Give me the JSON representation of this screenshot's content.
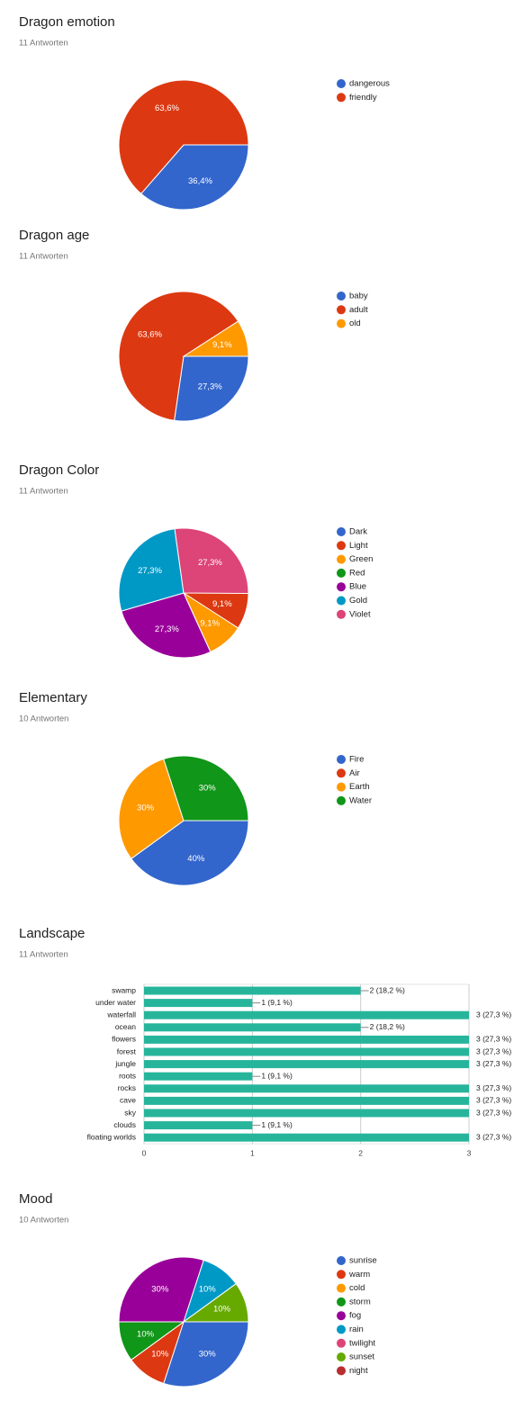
{
  "chart_data": [
    {
      "type": "pie",
      "title": "Dragon emotion",
      "subtitle": "11 Antworten",
      "categories": [
        "dangerous",
        "friendly"
      ],
      "values": [
        36.4,
        63.6
      ],
      "value_labels": [
        "36,4%",
        "63,6%"
      ],
      "colors": [
        "#3366cc",
        "#dc3912"
      ]
    },
    {
      "type": "pie",
      "title": "Dragon age",
      "subtitle": "11 Antworten",
      "categories": [
        "baby",
        "adult",
        "old"
      ],
      "values": [
        27.3,
        63.6,
        9.1
      ],
      "value_labels": [
        "27,3%",
        "63,6%",
        "9,1%"
      ],
      "colors": [
        "#3366cc",
        "#dc3912",
        "#ff9900"
      ]
    },
    {
      "type": "pie",
      "title": "Dragon Color",
      "subtitle": "11 Antworten",
      "categories": [
        "Dark",
        "Light",
        "Green",
        "Red",
        "Blue",
        "Gold",
        "Violet"
      ],
      "values": [
        0,
        9.1,
        9.1,
        0,
        27.3,
        27.3,
        27.3
      ],
      "value_labels": [
        null,
        "9,1%",
        "9,1%",
        null,
        "27,3%",
        "27,3%",
        "27,3%"
      ],
      "colors": [
        "#3366cc",
        "#dc3912",
        "#ff9900",
        "#109618",
        "#990099",
        "#0099c6",
        "#dd4477"
      ]
    },
    {
      "type": "pie",
      "title": "Elementary",
      "subtitle": "10 Antworten",
      "categories": [
        "Fire",
        "Air",
        "Earth",
        "Water"
      ],
      "values": [
        40,
        0,
        30,
        30
      ],
      "value_labels": [
        "40%",
        null,
        "30%",
        "30%"
      ],
      "colors": [
        "#3366cc",
        "#dc3912",
        "#ff9900",
        "#109618"
      ]
    },
    {
      "type": "bar",
      "title": "Landscape",
      "subtitle": "11 Antworten",
      "categories": [
        "swamp",
        "under water",
        "waterfall",
        "ocean",
        "flowers",
        "forest",
        "jungle",
        "roots",
        "rocks",
        "cave",
        "sky",
        "clouds",
        "floating worlds"
      ],
      "values": [
        2,
        1,
        3,
        2,
        3,
        3,
        3,
        1,
        3,
        3,
        3,
        1,
        3
      ],
      "value_labels": [
        "2 (18,2 %)",
        "1 (9,1 %)",
        "3 (27,3 %)",
        "2 (18,2 %)",
        "3 (27,3 %)",
        "3 (27,3 %)",
        "3 (27,3 %)",
        "1 (9,1 %)",
        "3 (27,3 %)",
        "3 (27,3 %)",
        "3 (27,3 %)",
        "1 (9,1 %)",
        "3 (27,3 %)"
      ],
      "color": "#26b59b",
      "xlim": [
        0,
        3
      ],
      "xticks": [
        0,
        1,
        2,
        3
      ],
      "grid": true
    },
    {
      "type": "pie",
      "title": "Mood",
      "subtitle": "10 Antworten",
      "categories": [
        "sunrise",
        "warm",
        "cold",
        "storm",
        "fog",
        "rain",
        "twilight",
        "sunset",
        "night"
      ],
      "values": [
        30,
        10,
        0,
        10,
        30,
        10,
        0,
        10,
        0
      ],
      "value_labels": [
        "30%",
        "10%",
        null,
        "10%",
        "30%",
        "10%",
        null,
        "10%",
        null
      ],
      "colors": [
        "#3366cc",
        "#dc3912",
        "#ff9900",
        "#109618",
        "#990099",
        "#0099c6",
        "#dd4477",
        "#66aa00",
        "#b82e2e"
      ]
    }
  ]
}
